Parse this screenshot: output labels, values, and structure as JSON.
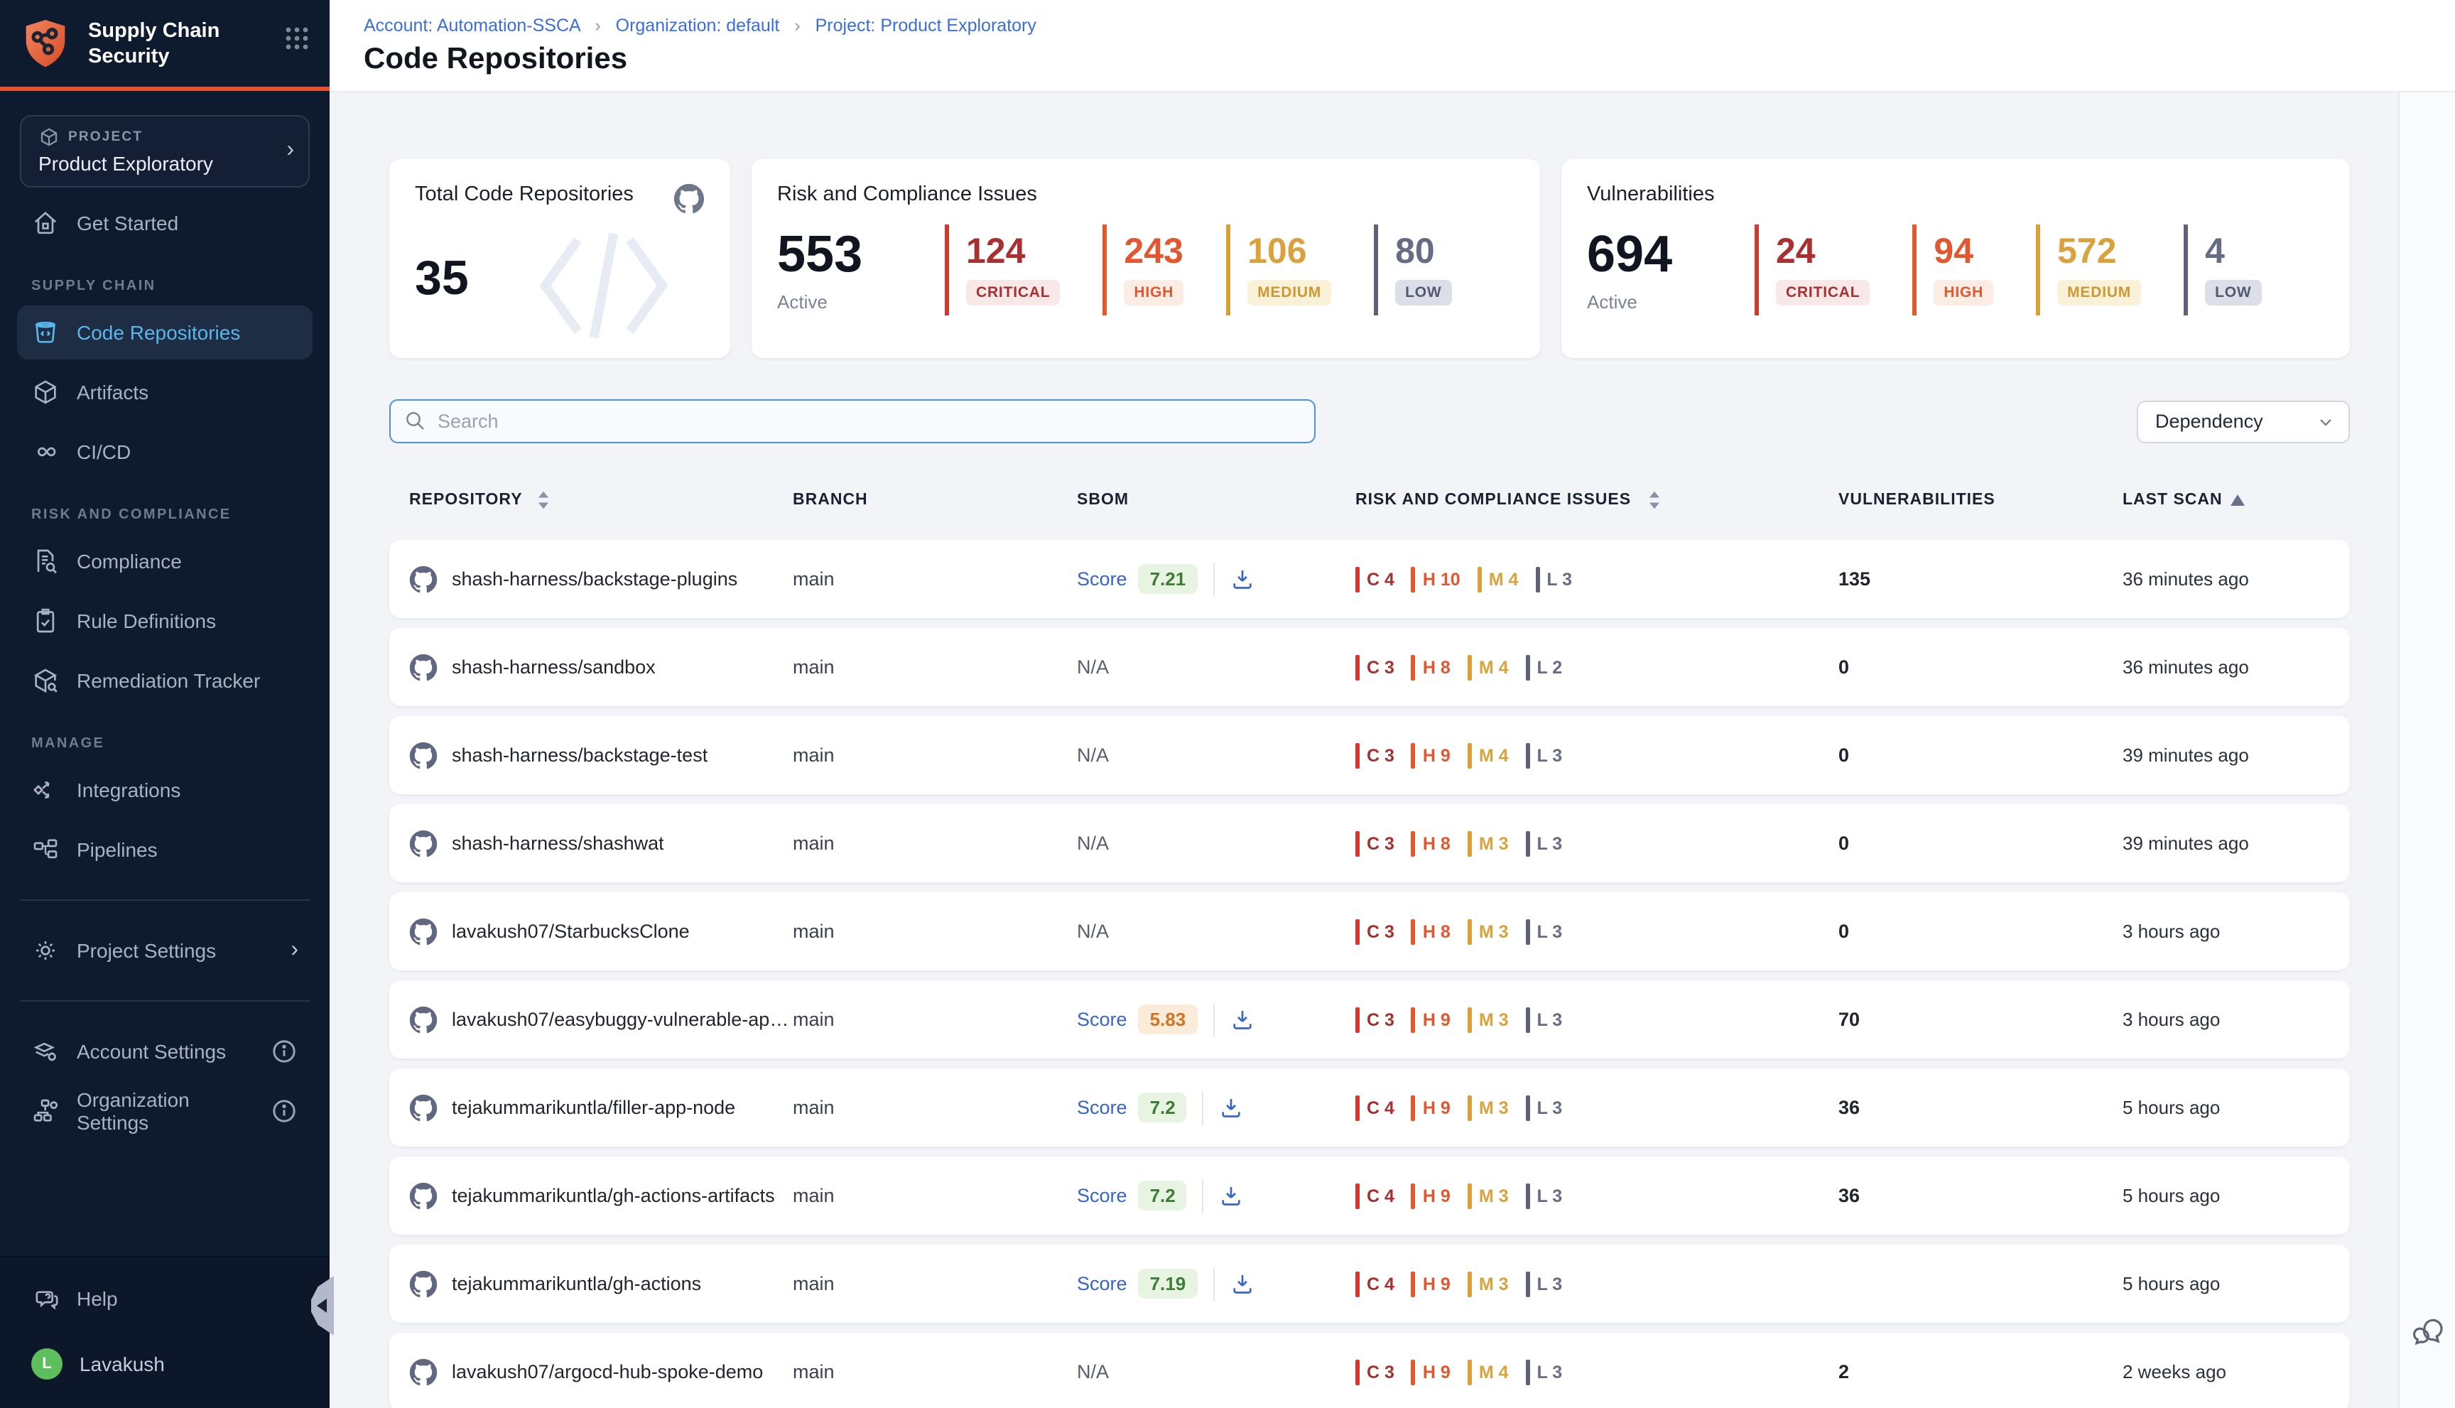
{
  "sidebar": {
    "title": "Supply Chain Security",
    "project_label": "PROJECT",
    "project_name": "Product Exploratory",
    "sections": {
      "supply_chain": "SUPPLY CHAIN",
      "risk_and_compliance": "RISK AND COMPLIANCE",
      "manage": "MANAGE"
    },
    "items": {
      "get_started": "Get Started",
      "code_repositories": "Code Repositories",
      "artifacts": "Artifacts",
      "cicd": "CI/CD",
      "compliance": "Compliance",
      "rule_definitions": "Rule Definitions",
      "remediation_tracker": "Remediation Tracker",
      "integrations": "Integrations",
      "pipelines": "Pipelines",
      "project_settings": "Project Settings",
      "account_settings": "Account Settings",
      "organization_settings": "Organization Settings"
    },
    "help": "Help",
    "user": "Lavakush",
    "user_initial": "L"
  },
  "header": {
    "breadcrumb": {
      "account": "Account: Automation-SSCA",
      "organization": "Organization: default",
      "project": "Project: Product Exploratory"
    },
    "separator": "›",
    "title": "Code Repositories"
  },
  "stats": {
    "repos": {
      "title": "Total Code Repositories",
      "value": "35"
    },
    "risk": {
      "title": "Risk and Compliance Issues",
      "value": "553",
      "active_label": "Active",
      "severities": [
        {
          "level": "critical",
          "count": "124",
          "label": "CRITICAL"
        },
        {
          "level": "high",
          "count": "243",
          "label": "HIGH"
        },
        {
          "level": "medium",
          "count": "106",
          "label": "MEDIUM"
        },
        {
          "level": "low",
          "count": "80",
          "label": "LOW"
        }
      ]
    },
    "vulns": {
      "title": "Vulnerabilities",
      "value": "694",
      "active_label": "Active",
      "severities": [
        {
          "level": "critical",
          "count": "24",
          "label": "CRITICAL"
        },
        {
          "level": "high",
          "count": "94",
          "label": "HIGH"
        },
        {
          "level": "medium",
          "count": "572",
          "label": "MEDIUM"
        },
        {
          "level": "low",
          "count": "4",
          "label": "LOW"
        }
      ]
    }
  },
  "severity_colors": {
    "critical": {
      "letter": "C",
      "bar": "#CE3A2D",
      "text": "#A93030",
      "badge_bg": "#F8E8E8",
      "badge_text": "#A93030"
    },
    "high": {
      "letter": "H",
      "bar": "#E4582E",
      "text": "#E2572F",
      "badge_bg": "#FBEDE4",
      "badge_text": "#E2572F"
    },
    "medium": {
      "letter": "M",
      "bar": "#D8A138",
      "text": "#D9A23C",
      "badge_bg": "#F9F2D9",
      "badge_text": "#CE9732"
    },
    "low": {
      "letter": "L",
      "bar": "#5E6278",
      "text": "#676C85",
      "badge_bg": "#DCDEE8",
      "badge_text": "#545972"
    }
  },
  "score_tones": {
    "green": {
      "bg": "#E7F4E1",
      "text": "#3F7C36"
    },
    "orange": {
      "bg": "#FBEBD9",
      "text": "#CE7526"
    }
  },
  "toolbar": {
    "search_placeholder": "Search",
    "filter_label": "Dependency"
  },
  "table": {
    "score_label": "Score",
    "na_label": "N/A",
    "columns": {
      "repository": "REPOSITORY",
      "branch": "BRANCH",
      "sbom": "SBOM",
      "risk": "RISK AND COMPLIANCE ISSUES",
      "vulnerabilities": "VULNERABILITIES",
      "last_scan": "LAST SCAN"
    },
    "rows": [
      {
        "repo": "shash-harness/backstage-plugins",
        "branch": "main",
        "sbom": {
          "score": "7.21",
          "tone": "green"
        },
        "risk": [
          4,
          10,
          4,
          3
        ],
        "vulns": "135",
        "last_scan": "36 minutes ago"
      },
      {
        "repo": "shash-harness/sandbox",
        "branch": "main",
        "sbom": null,
        "risk": [
          3,
          8,
          4,
          2
        ],
        "vulns": "0",
        "last_scan": "36 minutes ago"
      },
      {
        "repo": "shash-harness/backstage-test",
        "branch": "main",
        "sbom": null,
        "risk": [
          3,
          9,
          4,
          3
        ],
        "vulns": "0",
        "last_scan": "39 minutes ago"
      },
      {
        "repo": "shash-harness/shashwat",
        "branch": "main",
        "sbom": null,
        "risk": [
          3,
          8,
          3,
          3
        ],
        "vulns": "0",
        "last_scan": "39 minutes ago"
      },
      {
        "repo": "lavakush07/StarbucksClone",
        "branch": "main",
        "sbom": null,
        "risk": [
          3,
          8,
          3,
          3
        ],
        "vulns": "0",
        "last_scan": "3 hours ago"
      },
      {
        "repo": "lavakush07/easybuggy-vulnerable-app...",
        "branch": "main",
        "sbom": {
          "score": "5.83",
          "tone": "orange"
        },
        "risk": [
          3,
          9,
          3,
          3
        ],
        "vulns": "70",
        "last_scan": "3 hours ago"
      },
      {
        "repo": "tejakummarikuntla/filler-app-node",
        "branch": "main",
        "sbom": {
          "score": "7.2",
          "tone": "green"
        },
        "risk": [
          4,
          9,
          3,
          3
        ],
        "vulns": "36",
        "last_scan": "5 hours ago"
      },
      {
        "repo": "tejakummarikuntla/gh-actions-artifacts",
        "branch": "main",
        "sbom": {
          "score": "7.2",
          "tone": "green"
        },
        "risk": [
          4,
          9,
          3,
          3
        ],
        "vulns": "36",
        "last_scan": "5 hours ago"
      },
      {
        "repo": "tejakummarikuntla/gh-actions",
        "branch": "main",
        "sbom": {
          "score": "7.19",
          "tone": "green"
        },
        "risk": [
          4,
          9,
          3,
          3
        ],
        "vulns": "",
        "last_scan": "5 hours ago"
      },
      {
        "repo": "lavakush07/argocd-hub-spoke-demo",
        "branch": "main",
        "sbom": null,
        "risk": [
          3,
          9,
          4,
          3
        ],
        "vulns": "2",
        "last_scan": "2 weeks ago"
      }
    ]
  }
}
